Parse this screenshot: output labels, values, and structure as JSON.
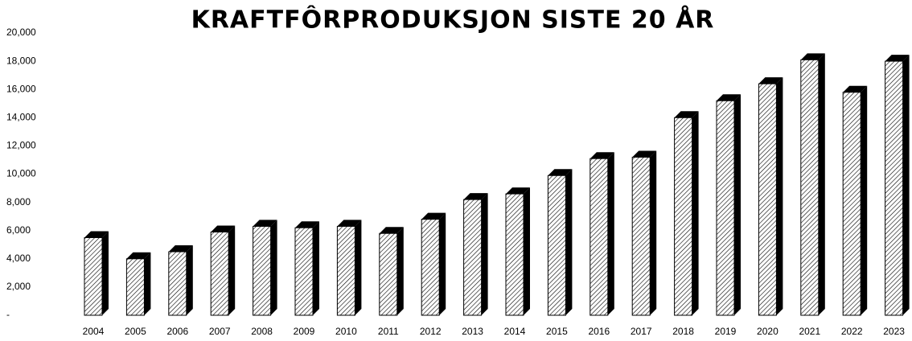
{
  "chart_data": {
    "type": "bar3d",
    "title": "KRAFTFÔRPRODUKSJON SISTE 20 ÅR",
    "categories": [
      "2004",
      "2005",
      "2006",
      "2007",
      "2008",
      "2009",
      "2010",
      "2011",
      "2012",
      "2013",
      "2014",
      "2015",
      "2016",
      "2017",
      "2018",
      "2019",
      "2020",
      "2021",
      "2022",
      "2023"
    ],
    "values": [
      5500,
      4000,
      4500,
      5900,
      6300,
      6200,
      6300,
      5800,
      6800,
      8200,
      8600,
      9900,
      11100,
      11200,
      14000,
      15200,
      16400,
      18100,
      15800,
      18000
    ],
    "color": "#000000",
    "ylim": [
      0,
      20000
    ],
    "yticks": [
      {
        "value": 0,
        "label": "-"
      },
      {
        "value": 2000,
        "label": "2,000"
      },
      {
        "value": 4000,
        "label": "4,000"
      },
      {
        "value": 6000,
        "label": "6,000"
      },
      {
        "value": 8000,
        "label": "8,000"
      },
      {
        "value": 10000,
        "label": "10,000"
      },
      {
        "value": 12000,
        "label": "12,000"
      },
      {
        "value": 14000,
        "label": "14,000"
      },
      {
        "value": 16000,
        "label": "16,000"
      },
      {
        "value": 18000,
        "label": "18,000"
      },
      {
        "value": 20000,
        "label": "20,000"
      }
    ],
    "grid": false
  }
}
